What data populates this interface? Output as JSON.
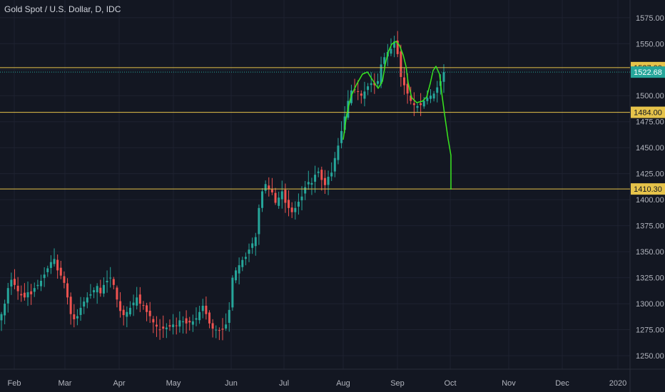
{
  "header": {
    "title": "Gold Spot / U.S. Dollar, D, IDC"
  },
  "colors": {
    "background": "#131722",
    "grid": "#1e2230",
    "axis_text": "#b2b5be",
    "up": "#26a69a",
    "down": "#ef5350",
    "level": "#e6c34a",
    "drawing": "#39e61e",
    "price_tag": "#26a69a"
  },
  "chart_data": {
    "type": "candlestick",
    "title": "Gold Spot / U.S. Dollar, D, IDC",
    "y_ticks": [
      "1250.00",
      "1275.00",
      "1300.00",
      "1325.00",
      "1350.00",
      "1375.00",
      "1400.00",
      "1425.00",
      "1450.00",
      "1475.00",
      "1500.00",
      "1525.00",
      "1550.00",
      "1575.00"
    ],
    "ylim": [
      1237,
      1592
    ],
    "x_ticks": [
      "Feb",
      "Mar",
      "Apr",
      "May",
      "Jun",
      "Jul",
      "Aug",
      "Sep",
      "Oct",
      "Nov",
      "Dec",
      "2020"
    ],
    "grid": true,
    "horizontal_levels": [
      {
        "label": "1527.00",
        "value": 1527.0
      },
      {
        "label": "1484.00",
        "value": 1484.0
      },
      {
        "label": "1410.30",
        "value": 1410.3
      }
    ],
    "current_price": {
      "label": "1522.68",
      "value": 1522.68
    },
    "closes": [
      1290,
      1300,
      1315,
      1323,
      1318,
      1312,
      1308,
      1306,
      1311,
      1309,
      1315,
      1318,
      1322,
      1328,
      1334,
      1340,
      1343,
      1332,
      1327,
      1320,
      1306,
      1290,
      1285,
      1288,
      1296,
      1302,
      1306,
      1309,
      1313,
      1317,
      1310,
      1318,
      1322,
      1325,
      1318,
      1304,
      1293,
      1289,
      1292,
      1296,
      1301,
      1306,
      1300,
      1298,
      1292,
      1288,
      1282,
      1278,
      1275,
      1276,
      1277,
      1278,
      1280,
      1279,
      1284,
      1283,
      1281,
      1282,
      1283,
      1286,
      1292,
      1298,
      1290,
      1281,
      1276,
      1275,
      1274,
      1275,
      1280,
      1294,
      1325,
      1332,
      1337,
      1342,
      1345,
      1352,
      1358,
      1364,
      1392,
      1408,
      1415,
      1410,
      1407,
      1397,
      1402,
      1408,
      1397,
      1392,
      1388,
      1392,
      1398,
      1403,
      1412,
      1417,
      1416,
      1424,
      1427,
      1419,
      1414,
      1422,
      1426,
      1440,
      1452,
      1466,
      1480,
      1495,
      1505,
      1506,
      1504,
      1500,
      1504,
      1509,
      1512,
      1510,
      1514,
      1530,
      1537,
      1542,
      1545,
      1552,
      1540,
      1518,
      1510,
      1502,
      1495,
      1491,
      1490,
      1491,
      1495,
      1498,
      1500,
      1502,
      1508,
      1514,
      1522.68
    ]
  }
}
